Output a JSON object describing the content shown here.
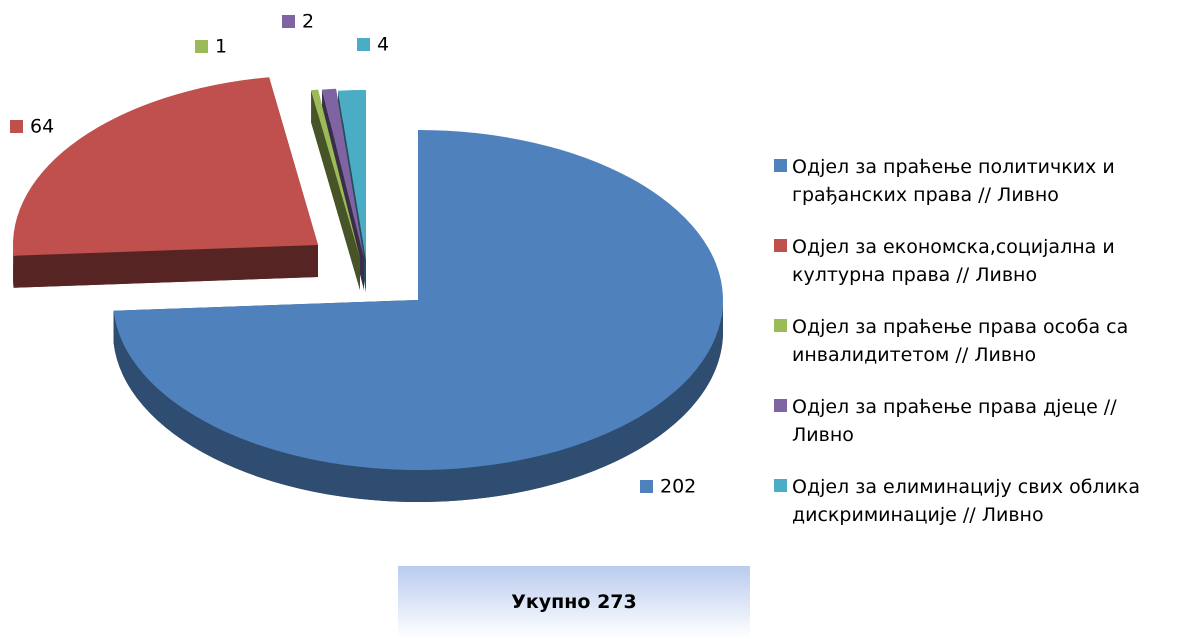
{
  "chart_data": {
    "type": "pie3d",
    "categories": [
      "Одјел за праћење политичких и грађанских права // Ливно",
      "Одјел за економска,социјална и културна права // Ливно",
      "Одјел за праћење права особа са инвалидитетом // Ливно",
      "Одјел за праћење права дјеце // Ливно",
      "Одјел за елиминацију свих облика дискриминације // Ливно"
    ],
    "values": [
      202,
      64,
      1,
      2,
      4
    ],
    "colors": [
      "#4f81bd",
      "#c0504d",
      "#9bbb59",
      "#8064a2",
      "#4bacc6"
    ],
    "legend": "right",
    "total_label": "Укупно 273"
  }
}
